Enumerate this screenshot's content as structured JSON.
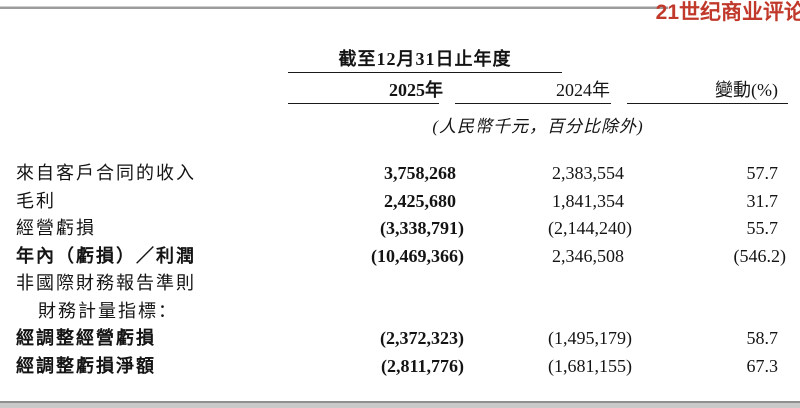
{
  "page": {
    "logo_text": "21世纪商业评论",
    "logo_color": "#c0392b"
  },
  "table": {
    "period_header": "截至12月31日止年度",
    "columns": {
      "col_2025": "2025年",
      "col_2024": "2024年",
      "col_change": "變動(%)"
    },
    "units_note": "(人民幣千元，百分比除外)",
    "rows": [
      {
        "label": "來自客戶合同的收入",
        "v2025": "3,758,268",
        "v2024": "2,383,554",
        "change": "57.7"
      },
      {
        "label": "毛利",
        "v2025": "2,425,680",
        "v2024": "1,841,354",
        "change": "31.7"
      },
      {
        "label": "經營虧損",
        "v2025": "(3,338,791)",
        "v2024": "(2,144,240)",
        "change": "55.7"
      },
      {
        "label": "年內（虧損）／利潤",
        "v2025": "(10,469,366)",
        "v2024": "2,346,508",
        "change": "(546.2)"
      },
      {
        "label": "非國際財務報告準則",
        "v2025": "",
        "v2024": "",
        "change": ""
      },
      {
        "label": "財務計量指標：",
        "v2025": "",
        "v2024": "",
        "change": ""
      },
      {
        "label": "經調整經營虧損",
        "v2025": "(2,372,323)",
        "v2024": "(1,495,179)",
        "change": "58.7"
      },
      {
        "label": "經調整虧損淨額",
        "v2025": "(2,811,776)",
        "v2024": "(1,681,155)",
        "change": "67.3"
      }
    ]
  }
}
